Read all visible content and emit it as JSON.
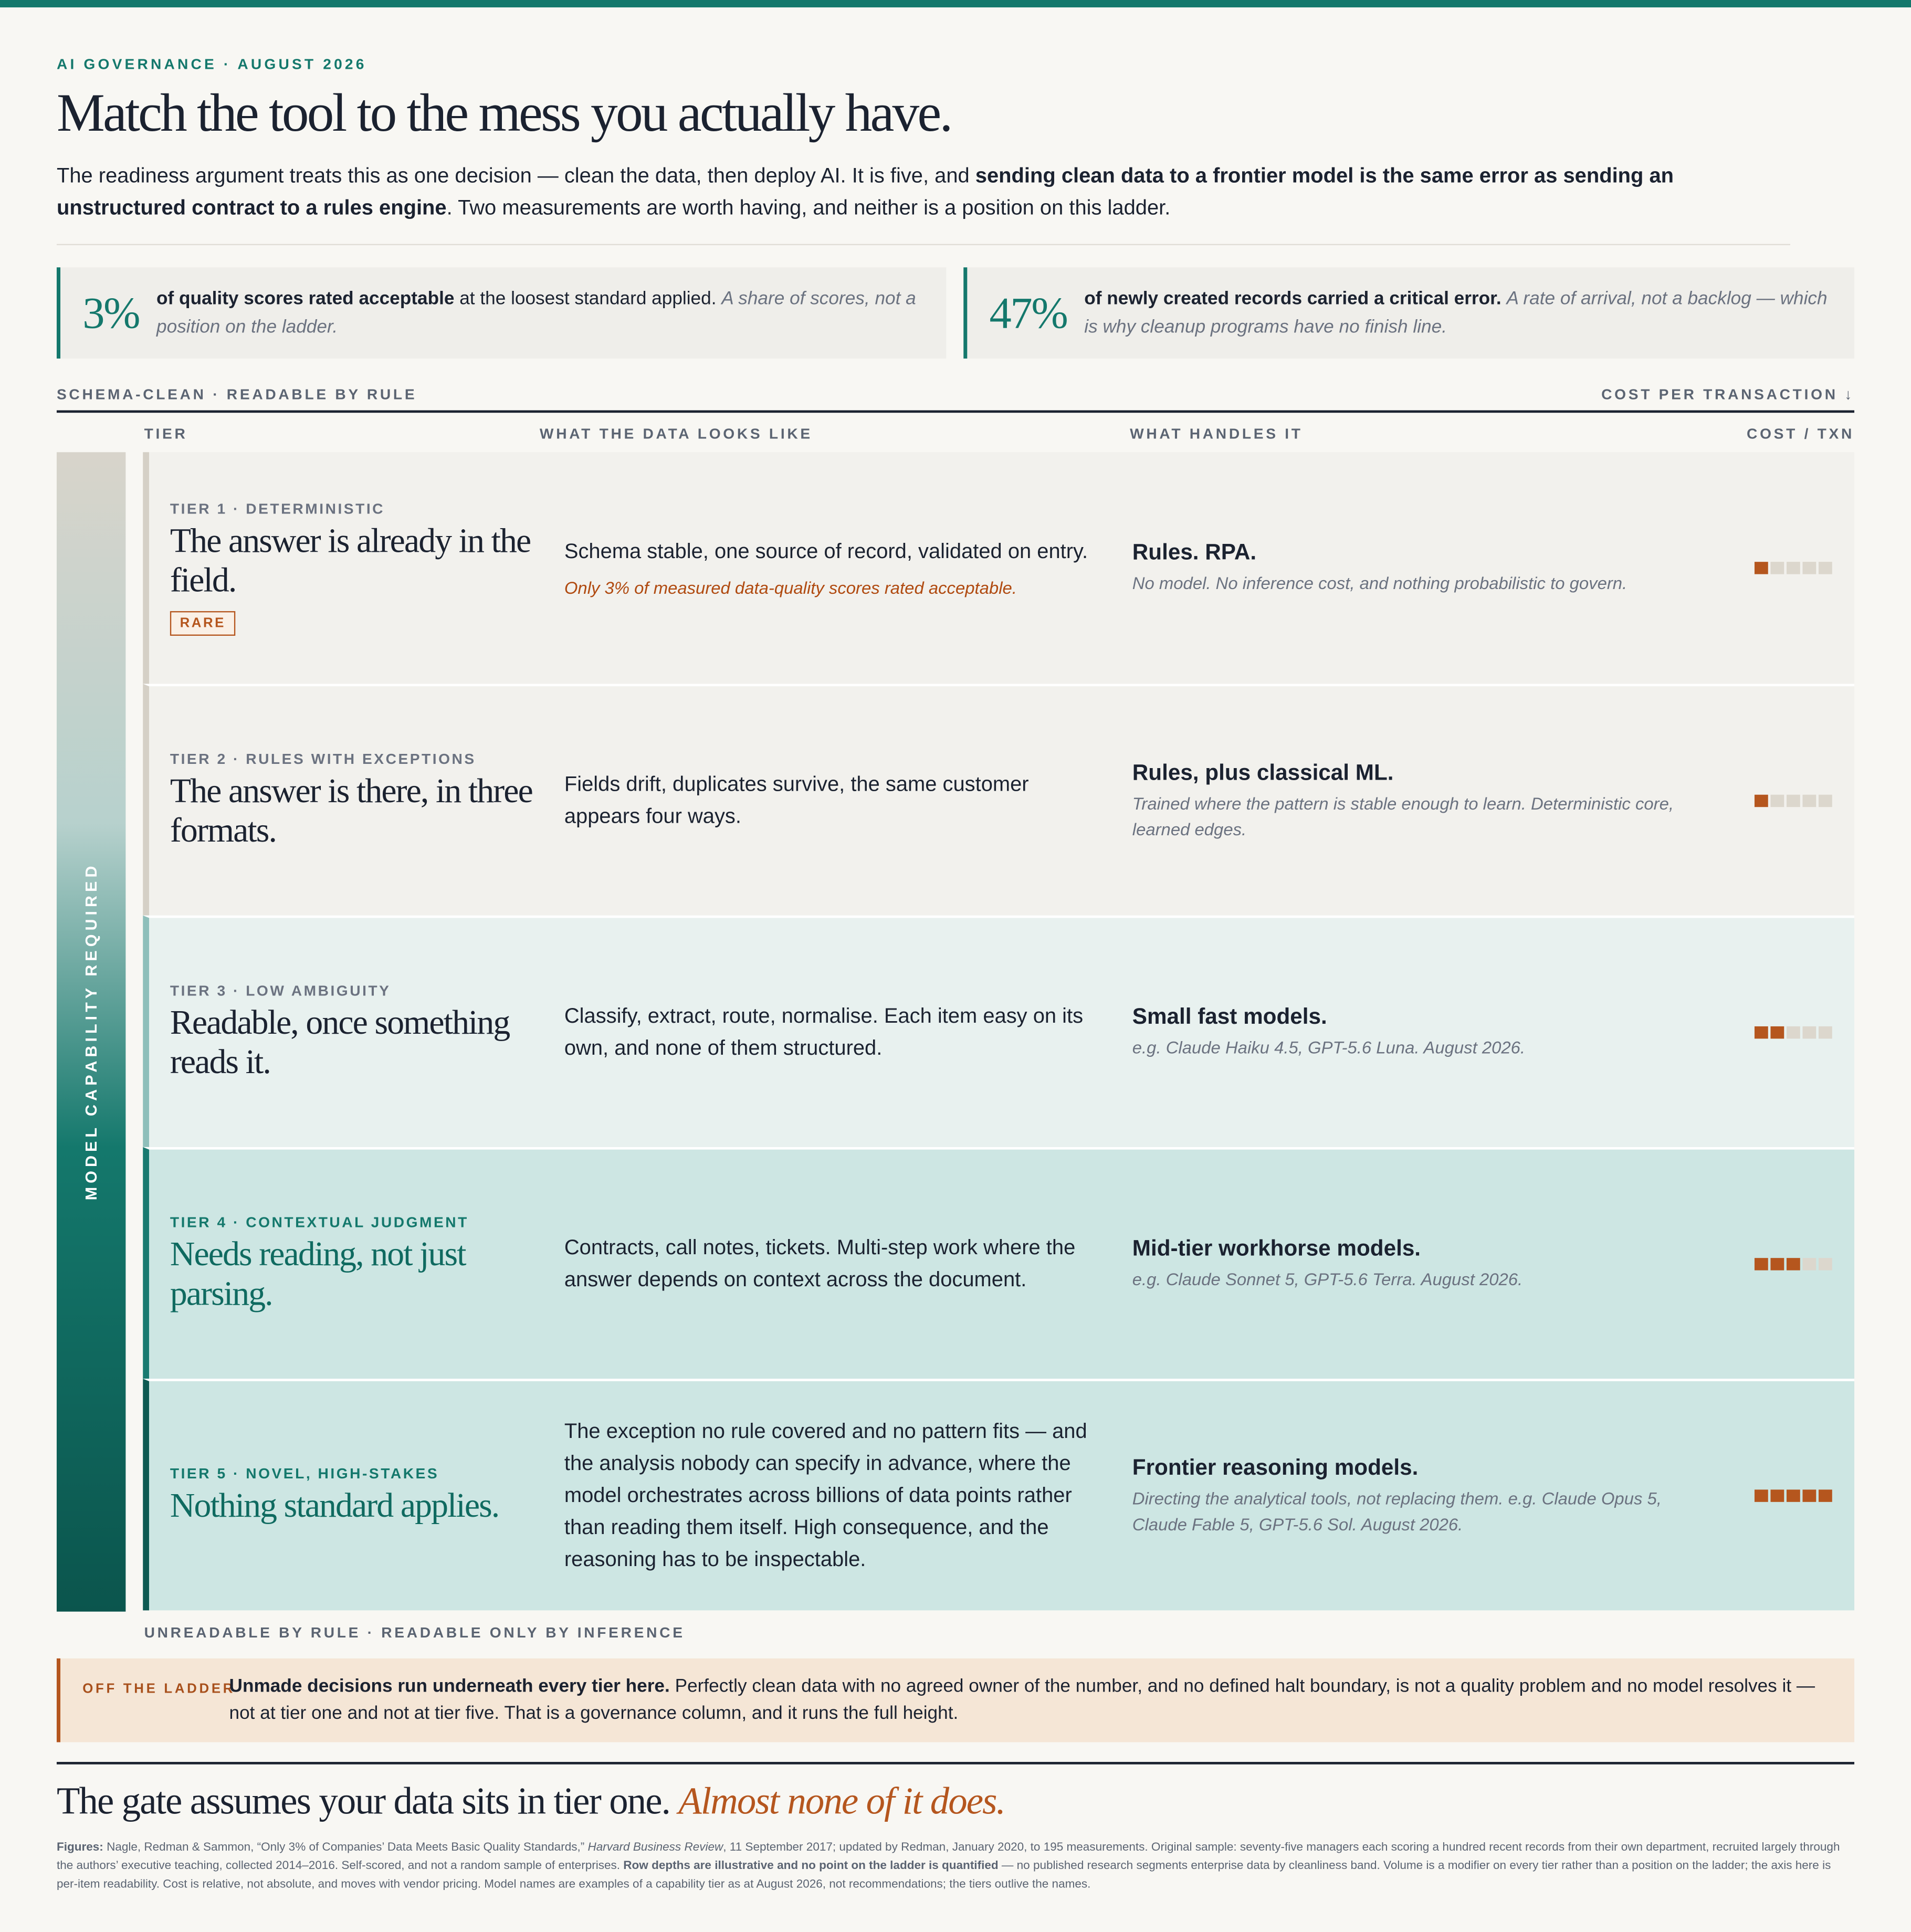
{
  "header": {
    "kicker": "AI GOVERNANCE · AUGUST 2026",
    "title": "Match the tool to the mess you actually have.",
    "intro": [
      {
        "text": "The readiness argument treats this as one decision — clean the data, then deploy AI. It is five, and "
      },
      {
        "text": "sending clean data to a frontier model is the same error as sending an unstructured contract to a rules engine",
        "style": "b"
      },
      {
        "text": ". Two measurements are worth having, and neither is a position on this ladder."
      }
    ]
  },
  "stats": [
    {
      "figure": "3%",
      "lead": "of quality scores rated acceptable",
      "text": " at the loosest standard applied. ",
      "note": "A share of scores, not a position on the ladder."
    },
    {
      "figure": "47%",
      "lead": "of newly created records carried a critical error.",
      "text": " ",
      "note": "A rate of arrival, not a backlog — which is why cleanup programs have no finish line."
    }
  ],
  "ladder": {
    "top_label": "SCHEMA-CLEAN · READABLE BY RULE",
    "cost_axis": "COST PER TRANSACTION ↓",
    "columns": [
      "TIER",
      "WHAT THE DATA LOOKS LIKE",
      "WHAT HANDLES IT",
      "COST / TXN"
    ],
    "axis_label": "MODEL CAPABILITY REQUIRED",
    "bottom_label": "UNREADABLE BY RULE · READABLE ONLY BY INFERENCE",
    "cost_max": 5,
    "tiers": [
      {
        "tier": "TIER 1 · DETERMINISTIC",
        "headline": "The answer is already in the field.",
        "badge": "RARE",
        "data": "Schema stable, one source of record, validated on entry.",
        "data_note": "Only 3% of measured data-quality scores rated acceptable.",
        "handler": "Rules. RPA.",
        "handler_note": "No model. No inference cost, and nothing probabilistic to govern.",
        "cost": 1
      },
      {
        "tier": "TIER 2 · RULES WITH EXCEPTIONS",
        "headline": "The answer is there, in three formats.",
        "data": "Fields drift, duplicates survive, the same customer appears four ways.",
        "handler": "Rules, plus classical ML.",
        "handler_note": "Trained where the pattern is stable enough to learn. Deterministic core, learned edges.",
        "cost": 1
      },
      {
        "tier": "TIER 3 · LOW AMBIGUITY",
        "headline": "Readable, once something reads it.",
        "data": "Classify, extract, route, normalise. Each item easy on its own, and none of them structured.",
        "handler": "Small fast models.",
        "handler_note": "e.g. Claude Haiku 4.5, GPT-5.6 Luna. August 2026.",
        "cost": 2
      },
      {
        "tier": "TIER 4 · CONTEXTUAL JUDGMENT",
        "headline": "Needs reading, not just parsing.",
        "data": "Contracts, call notes, tickets. Multi-step work where the answer depends on context across the document.",
        "handler": "Mid-tier workhorse models.",
        "handler_note": "e.g. Claude Sonnet 5, GPT-5.6 Terra. August 2026.",
        "cost": 3
      },
      {
        "tier": "TIER 5 · NOVEL, HIGH-STAKES",
        "headline": "Nothing standard applies.",
        "data": "The exception no rule covered and no pattern fits — and the analysis nobody can specify in advance, where the model orchestrates across billions of data points rather than reading them itself. High consequence, and the reasoning has to be inspectable.",
        "handler": "Frontier reasoning models.",
        "handler_note": "Directing the analytical tools, not replacing them. e.g. Claude Opus 5, Claude Fable 5, GPT-5.6 Sol. August 2026.",
        "cost": 5
      }
    ]
  },
  "callout": {
    "label": "OFF THE LADDER",
    "lead": "Unmade decisions run underneath every tier here.",
    "text": " Perfectly clean data with no agreed owner of the number, and no defined halt boundary, is not a quality problem and no model resolves it — not at tier one and not at tier five. That is a governance column, and it runs the full height."
  },
  "conclusion": {
    "text": "The gate assumes your data sits in tier one. ",
    "emphasis": "Almost none of it does."
  },
  "footnote": [
    {
      "text": "Figures:",
      "style": "b"
    },
    {
      "text": " Nagle, Redman & Sammon, “Only 3% of Companies’ Data Meets Basic Quality Standards,” "
    },
    {
      "text": "Harvard Business Review",
      "style": "i"
    },
    {
      "text": ", 11 September 2017; updated by Redman, January 2020, to 195 measurements. Original sample: seventy-five managers each scoring a hundred recent records from their own department, recruited largely through the authors’ executive teaching, collected 2014–2016. Self-scored, and not a random sample of enterprises. "
    },
    {
      "text": "Row depths are illustrative and no point on the ladder is quantified",
      "style": "b"
    },
    {
      "text": " — no published research segments enterprise data by cleanliness band. Volume is a modifier on every tier rather than a position on the ladder; the axis here is per-item readability. Cost is relative, not absolute, and moves with vendor pricing. Model names are examples of a capability tier as at August 2026, not recommendations; the tiers outlive the names."
    }
  ]
}
